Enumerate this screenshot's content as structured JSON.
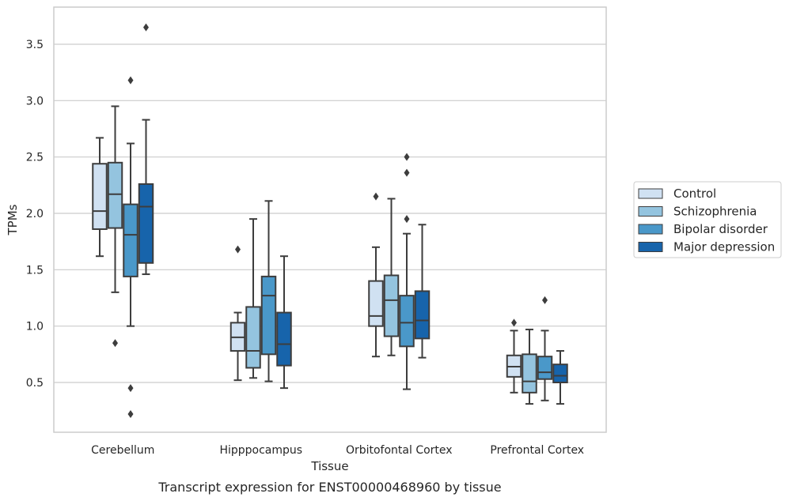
{
  "chart_data": {
    "type": "box",
    "title": "",
    "caption": "Transcript expression for ENST00000468960 by tissue",
    "xlabel": "Tissue",
    "ylabel": "TPMs",
    "ylim": [
      0.0,
      3.75
    ],
    "yticks": [
      0.5,
      1.0,
      1.5,
      2.0,
      2.5,
      3.0,
      3.5
    ],
    "ytick_labels": [
      "0.5",
      "1.0",
      "1.5",
      "2.0",
      "2.5",
      "3.0",
      "3.5"
    ],
    "grid": "horizontal",
    "legend_position": "right",
    "categories": [
      "Cerebellum",
      "Hipppocampus",
      "Orbitofontal Cortex",
      "Prefrontal Cortex"
    ],
    "series": [
      {
        "name": "Control",
        "color": "#d0e1f2",
        "boxes": [
          {
            "whislo": 1.62,
            "q1": 1.86,
            "med": 2.02,
            "q3": 2.44,
            "whishi": 2.67,
            "fliers": []
          },
          {
            "whislo": 0.52,
            "q1": 0.78,
            "med": 0.9,
            "q3": 1.03,
            "whishi": 1.12,
            "fliers": [
              1.68
            ]
          },
          {
            "whislo": 0.73,
            "q1": 1.0,
            "med": 1.09,
            "q3": 1.4,
            "whishi": 1.7,
            "fliers": [
              2.15
            ]
          },
          {
            "whislo": 0.41,
            "q1": 0.55,
            "med": 0.64,
            "q3": 0.74,
            "whishi": 0.96,
            "fliers": [
              1.03
            ]
          }
        ]
      },
      {
        "name": "Schizophrenia",
        "color": "#94c4df",
        "boxes": [
          {
            "whislo": 1.3,
            "q1": 1.87,
            "med": 2.17,
            "q3": 2.45,
            "whishi": 2.95,
            "fliers": [
              0.85
            ]
          },
          {
            "whislo": 0.54,
            "q1": 0.63,
            "med": 0.78,
            "q3": 1.17,
            "whishi": 1.95,
            "fliers": []
          },
          {
            "whislo": 0.74,
            "q1": 0.91,
            "med": 1.23,
            "q3": 1.45,
            "whishi": 2.13,
            "fliers": []
          },
          {
            "whislo": 0.31,
            "q1": 0.41,
            "med": 0.51,
            "q3": 0.75,
            "whishi": 0.97,
            "fliers": []
          }
        ]
      },
      {
        "name": "Bipolar disorder",
        "color": "#4a98c9",
        "boxes": [
          {
            "whislo": 1.0,
            "q1": 1.44,
            "med": 1.81,
            "q3": 2.08,
            "whishi": 2.62,
            "fliers": [
              3.18,
              0.45,
              0.22
            ]
          },
          {
            "whislo": 0.51,
            "q1": 0.75,
            "med": 1.27,
            "q3": 1.44,
            "whishi": 2.11,
            "fliers": []
          },
          {
            "whislo": 0.44,
            "q1": 0.82,
            "med": 1.03,
            "q3": 1.27,
            "whishi": 1.82,
            "fliers": [
              2.5,
              2.36,
              1.95
            ]
          },
          {
            "whislo": 0.34,
            "q1": 0.53,
            "med": 0.59,
            "q3": 0.73,
            "whishi": 0.96,
            "fliers": [
              1.23
            ]
          }
        ]
      },
      {
        "name": "Major depression",
        "color": "#1764ab",
        "boxes": [
          {
            "whislo": 1.46,
            "q1": 1.56,
            "med": 2.06,
            "q3": 2.26,
            "whishi": 2.83,
            "fliers": [
              3.65
            ]
          },
          {
            "whislo": 0.45,
            "q1": 0.65,
            "med": 0.84,
            "q3": 1.12,
            "whishi": 1.62,
            "fliers": []
          },
          {
            "whislo": 0.72,
            "q1": 0.89,
            "med": 1.05,
            "q3": 1.31,
            "whishi": 1.9,
            "fliers": []
          },
          {
            "whislo": 0.31,
            "q1": 0.5,
            "med": 0.56,
            "q3": 0.66,
            "whishi": 0.78,
            "fliers": []
          }
        ]
      }
    ]
  }
}
